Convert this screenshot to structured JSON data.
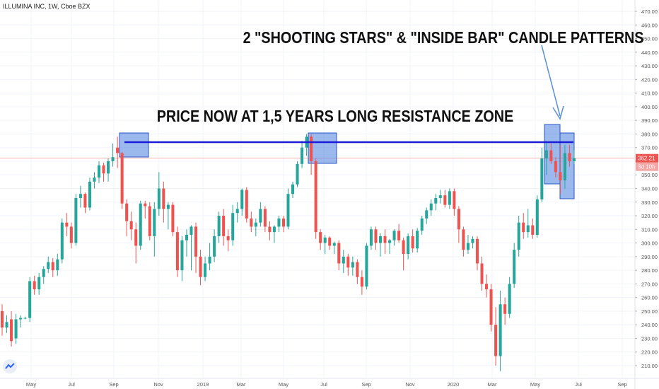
{
  "header": {
    "symbol_title": "ILLUMINA INC, 1W, Cboe BZX"
  },
  "annotations": {
    "patterns_note": "2 \"SHOOTING STARS\" & \"INSIDE BAR\" CANDLE PATTERNS",
    "resistance_note": "PRICE NOW AT 1,5 YEARS LONG RESISTANCE ZONE"
  },
  "price_axis": {
    "ticks": [
      "470.00",
      "460.00",
      "450.00",
      "440.00",
      "430.00",
      "420.00",
      "410.00",
      "400.00",
      "390.00",
      "380.00",
      "370.00",
      "360.00",
      "350.00",
      "340.00",
      "330.00",
      "320.00",
      "310.00",
      "300.00",
      "290.00",
      "280.00",
      "270.00",
      "260.00",
      "250.00",
      "240.00",
      "230.00",
      "220.00",
      "210.00"
    ],
    "last_price_label": "362.21",
    "countdown_label": "3d 10h"
  },
  "time_axis": {
    "labels": [
      "May",
      "Jul",
      "Sep",
      "Nov",
      "2019",
      "Mar",
      "May",
      "Jul",
      "Sep",
      "Nov",
      "2020",
      "Mar",
      "May",
      "Jul",
      "Sep"
    ]
  },
  "colors": {
    "up": "#26a69a",
    "down": "#ef5350",
    "resistance_line": "#1c1cd6",
    "highlight_fill": "#4a7fe0",
    "highlight_stroke": "#2957c9",
    "last_price_bg": "#ef5350",
    "countdown_bg": "#f3a6a4",
    "arrow": "#5b8fd6"
  },
  "chart_data": {
    "type": "candlestick",
    "title": "ILLUMINA INC, 1W, Cboe BZX",
    "interval": "1W",
    "ylim": [
      205,
      475
    ],
    "grid": true,
    "resistance_level": 374,
    "last_price": 362.21,
    "candles": [
      {
        "o": 250,
        "h": 255,
        "l": 232,
        "c": 238
      },
      {
        "o": 238,
        "h": 247,
        "l": 234,
        "c": 242
      },
      {
        "o": 244,
        "h": 250,
        "l": 224,
        "c": 228
      },
      {
        "o": 230,
        "h": 248,
        "l": 226,
        "c": 244
      },
      {
        "o": 244,
        "h": 247,
        "l": 238,
        "c": 245
      },
      {
        "o": 245,
        "h": 246,
        "l": 244,
        "c": 245
      },
      {
        "o": 245,
        "h": 275,
        "l": 242,
        "c": 272
      },
      {
        "o": 272,
        "h": 276,
        "l": 262,
        "c": 266
      },
      {
        "o": 266,
        "h": 278,
        "l": 262,
        "c": 275
      },
      {
        "o": 275,
        "h": 283,
        "l": 270,
        "c": 281
      },
      {
        "o": 281,
        "h": 290,
        "l": 278,
        "c": 286
      },
      {
        "o": 286,
        "h": 289,
        "l": 275,
        "c": 280
      },
      {
        "o": 280,
        "h": 292,
        "l": 276,
        "c": 288
      },
      {
        "o": 288,
        "h": 318,
        "l": 285,
        "c": 315
      },
      {
        "o": 315,
        "h": 322,
        "l": 305,
        "c": 312
      },
      {
        "o": 312,
        "h": 315,
        "l": 296,
        "c": 300
      },
      {
        "o": 300,
        "h": 336,
        "l": 298,
        "c": 333
      },
      {
        "o": 333,
        "h": 342,
        "l": 326,
        "c": 336
      },
      {
        "o": 336,
        "h": 337,
        "l": 322,
        "c": 326
      },
      {
        "o": 326,
        "h": 348,
        "l": 324,
        "c": 345
      },
      {
        "o": 345,
        "h": 352,
        "l": 340,
        "c": 348
      },
      {
        "o": 348,
        "h": 360,
        "l": 344,
        "c": 357
      },
      {
        "o": 357,
        "h": 359,
        "l": 345,
        "c": 351
      },
      {
        "o": 351,
        "h": 362,
        "l": 345,
        "c": 360
      },
      {
        "o": 360,
        "h": 373,
        "l": 356,
        "c": 363
      },
      {
        "o": 370,
        "h": 378,
        "l": 355,
        "c": 366
      },
      {
        "o": 366,
        "h": 367,
        "l": 325,
        "c": 329
      },
      {
        "o": 329,
        "h": 332,
        "l": 305,
        "c": 316
      },
      {
        "o": 316,
        "h": 323,
        "l": 302,
        "c": 310
      },
      {
        "o": 310,
        "h": 315,
        "l": 285,
        "c": 298
      },
      {
        "o": 298,
        "h": 331,
        "l": 295,
        "c": 329
      },
      {
        "o": 329,
        "h": 331,
        "l": 318,
        "c": 327
      },
      {
        "o": 327,
        "h": 330,
        "l": 302,
        "c": 305
      },
      {
        "o": 305,
        "h": 330,
        "l": 290,
        "c": 325
      },
      {
        "o": 325,
        "h": 352,
        "l": 320,
        "c": 340
      },
      {
        "o": 340,
        "h": 345,
        "l": 315,
        "c": 325
      },
      {
        "o": 325,
        "h": 330,
        "l": 310,
        "c": 328
      },
      {
        "o": 328,
        "h": 330,
        "l": 305,
        "c": 308
      },
      {
        "o": 308,
        "h": 312,
        "l": 275,
        "c": 280
      },
      {
        "o": 280,
        "h": 305,
        "l": 272,
        "c": 302
      },
      {
        "o": 302,
        "h": 310,
        "l": 290,
        "c": 306
      },
      {
        "o": 306,
        "h": 313,
        "l": 280,
        "c": 312
      },
      {
        "o": 312,
        "h": 315,
        "l": 278,
        "c": 290
      },
      {
        "o": 290,
        "h": 295,
        "l": 269,
        "c": 275
      },
      {
        "o": 275,
        "h": 290,
        "l": 272,
        "c": 285
      },
      {
        "o": 285,
        "h": 300,
        "l": 280,
        "c": 290
      },
      {
        "o": 290,
        "h": 310,
        "l": 286,
        "c": 305
      },
      {
        "o": 305,
        "h": 323,
        "l": 300,
        "c": 320
      },
      {
        "o": 320,
        "h": 325,
        "l": 298,
        "c": 305
      },
      {
        "o": 305,
        "h": 310,
        "l": 294,
        "c": 302
      },
      {
        "o": 302,
        "h": 328,
        "l": 298,
        "c": 322
      },
      {
        "o": 322,
        "h": 330,
        "l": 315,
        "c": 325
      },
      {
        "o": 325,
        "h": 340,
        "l": 320,
        "c": 339
      },
      {
        "o": 339,
        "h": 341,
        "l": 315,
        "c": 318
      },
      {
        "o": 318,
        "h": 323,
        "l": 308,
        "c": 312
      },
      {
        "o": 312,
        "h": 318,
        "l": 305,
        "c": 315
      },
      {
        "o": 315,
        "h": 330,
        "l": 312,
        "c": 325
      },
      {
        "o": 325,
        "h": 327,
        "l": 308,
        "c": 312
      },
      {
        "o": 312,
        "h": 316,
        "l": 302,
        "c": 308
      },
      {
        "o": 308,
        "h": 313,
        "l": 300,
        "c": 312
      },
      {
        "o": 312,
        "h": 320,
        "l": 308,
        "c": 318
      },
      {
        "o": 318,
        "h": 320,
        "l": 308,
        "c": 312
      },
      {
        "o": 312,
        "h": 340,
        "l": 310,
        "c": 336
      },
      {
        "o": 336,
        "h": 345,
        "l": 333,
        "c": 343
      },
      {
        "o": 343,
        "h": 360,
        "l": 341,
        "c": 358
      },
      {
        "o": 358,
        "h": 375,
        "l": 355,
        "c": 370
      },
      {
        "o": 370,
        "h": 380,
        "l": 364,
        "c": 378
      },
      {
        "o": 378,
        "h": 380,
        "l": 350,
        "c": 360
      },
      {
        "o": 360,
        "h": 362,
        "l": 303,
        "c": 308
      },
      {
        "o": 308,
        "h": 310,
        "l": 295,
        "c": 300
      },
      {
        "o": 300,
        "h": 306,
        "l": 292,
        "c": 304
      },
      {
        "o": 304,
        "h": 305,
        "l": 295,
        "c": 298
      },
      {
        "o": 298,
        "h": 301,
        "l": 292,
        "c": 300
      },
      {
        "o": 300,
        "h": 302,
        "l": 280,
        "c": 285
      },
      {
        "o": 285,
        "h": 295,
        "l": 278,
        "c": 290
      },
      {
        "o": 290,
        "h": 292,
        "l": 276,
        "c": 282
      },
      {
        "o": 282,
        "h": 290,
        "l": 276,
        "c": 286
      },
      {
        "o": 286,
        "h": 288,
        "l": 270,
        "c": 275
      },
      {
        "o": 275,
        "h": 280,
        "l": 262,
        "c": 268
      },
      {
        "o": 268,
        "h": 300,
        "l": 266,
        "c": 298
      },
      {
        "o": 298,
        "h": 312,
        "l": 295,
        "c": 310
      },
      {
        "o": 310,
        "h": 312,
        "l": 295,
        "c": 300
      },
      {
        "o": 300,
        "h": 307,
        "l": 290,
        "c": 305
      },
      {
        "o": 305,
        "h": 310,
        "l": 292,
        "c": 300
      },
      {
        "o": 300,
        "h": 303,
        "l": 292,
        "c": 302
      },
      {
        "o": 302,
        "h": 310,
        "l": 298,
        "c": 309
      },
      {
        "o": 309,
        "h": 314,
        "l": 300,
        "c": 302
      },
      {
        "o": 302,
        "h": 304,
        "l": 280,
        "c": 292
      },
      {
        "o": 292,
        "h": 307,
        "l": 288,
        "c": 305
      },
      {
        "o": 305,
        "h": 310,
        "l": 293,
        "c": 296
      },
      {
        "o": 296,
        "h": 311,
        "l": 293,
        "c": 309
      },
      {
        "o": 309,
        "h": 320,
        "l": 306,
        "c": 318
      },
      {
        "o": 318,
        "h": 326,
        "l": 314,
        "c": 324
      },
      {
        "o": 324,
        "h": 332,
        "l": 320,
        "c": 329
      },
      {
        "o": 329,
        "h": 336,
        "l": 324,
        "c": 333
      },
      {
        "o": 333,
        "h": 339,
        "l": 329,
        "c": 335
      },
      {
        "o": 335,
        "h": 339,
        "l": 326,
        "c": 328
      },
      {
        "o": 328,
        "h": 340,
        "l": 325,
        "c": 338
      },
      {
        "o": 338,
        "h": 340,
        "l": 320,
        "c": 325
      },
      {
        "o": 325,
        "h": 327,
        "l": 300,
        "c": 310
      },
      {
        "o": 310,
        "h": 312,
        "l": 290,
        "c": 295
      },
      {
        "o": 295,
        "h": 306,
        "l": 292,
        "c": 300
      },
      {
        "o": 300,
        "h": 305,
        "l": 296,
        "c": 303
      },
      {
        "o": 303,
        "h": 305,
        "l": 280,
        "c": 285
      },
      {
        "o": 285,
        "h": 290,
        "l": 265,
        "c": 270
      },
      {
        "o": 270,
        "h": 277,
        "l": 260,
        "c": 266
      },
      {
        "o": 266,
        "h": 270,
        "l": 235,
        "c": 240
      },
      {
        "o": 240,
        "h": 253,
        "l": 210,
        "c": 217
      },
      {
        "o": 217,
        "h": 265,
        "l": 206,
        "c": 255
      },
      {
        "o": 255,
        "h": 260,
        "l": 240,
        "c": 248
      },
      {
        "o": 248,
        "h": 275,
        "l": 245,
        "c": 270
      },
      {
        "o": 270,
        "h": 300,
        "l": 267,
        "c": 295
      },
      {
        "o": 295,
        "h": 320,
        "l": 290,
        "c": 315
      },
      {
        "o": 315,
        "h": 322,
        "l": 303,
        "c": 308
      },
      {
        "o": 308,
        "h": 325,
        "l": 304,
        "c": 313
      },
      {
        "o": 313,
        "h": 318,
        "l": 303,
        "c": 306
      },
      {
        "o": 306,
        "h": 335,
        "l": 304,
        "c": 332
      },
      {
        "o": 332,
        "h": 370,
        "l": 330,
        "c": 362
      },
      {
        "o": 362,
        "h": 375,
        "l": 350,
        "c": 368
      },
      {
        "o": 368,
        "h": 373,
        "l": 358,
        "c": 360
      },
      {
        "o": 360,
        "h": 363,
        "l": 348,
        "c": 352
      },
      {
        "o": 352,
        "h": 372,
        "l": 336,
        "c": 346
      },
      {
        "o": 346,
        "h": 372,
        "l": 340,
        "c": 366
      },
      {
        "o": 366,
        "h": 372,
        "l": 356,
        "c": 360
      },
      {
        "o": 360,
        "h": 368,
        "l": 358,
        "c": 362.21
      }
    ]
  }
}
